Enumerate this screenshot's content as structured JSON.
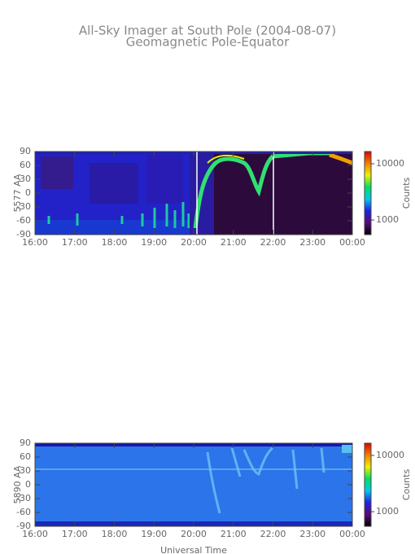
{
  "chart_data": [
    {
      "type": "heatmap",
      "title": "All-Sky Imager at South Pole (2004-08-07)",
      "subtitle": "Geomagnetic Pole-Equator",
      "ylabel": "5577 AA",
      "xlim": [
        16,
        24
      ],
      "xticks": [
        {
          "value": 16,
          "label": "16:00"
        },
        {
          "value": 17,
          "label": "17:00"
        },
        {
          "value": 18,
          "label": "18:00"
        },
        {
          "value": 19,
          "label": "19:00"
        },
        {
          "value": 20,
          "label": "20:00"
        },
        {
          "value": 21,
          "label": "21:00"
        },
        {
          "value": 22,
          "label": "22:00"
        },
        {
          "value": 23,
          "label": "23:00"
        },
        {
          "value": 24,
          "label": "00:00"
        }
      ],
      "ylim": [
        -90,
        90
      ],
      "yticks": [
        -90,
        -60,
        -30,
        0,
        30,
        60,
        90
      ],
      "colorbar": {
        "label": "Counts",
        "log": true,
        "lim": [
          550,
          16500
        ],
        "ticks": [
          1000,
          10000
        ]
      },
      "colormap": [
        "#000000",
        "#5a0a78",
        "#2020e0",
        "#00c8f0",
        "#00e060",
        "#f0f000",
        "#f08000",
        "#e00000"
      ]
    },
    {
      "type": "heatmap",
      "ylabel": "5890 AA",
      "xlabel": "Universal Time",
      "xlim": [
        16,
        24
      ],
      "xticks": [
        {
          "value": 16,
          "label": "16:00"
        },
        {
          "value": 17,
          "label": "17:00"
        },
        {
          "value": 18,
          "label": "18:00"
        },
        {
          "value": 19,
          "label": "19:00"
        },
        {
          "value": 20,
          "label": "20:00"
        },
        {
          "value": 21,
          "label": "21:00"
        },
        {
          "value": 22,
          "label": "22:00"
        },
        {
          "value": 23,
          "label": "23:00"
        },
        {
          "value": 24,
          "label": "00:00"
        }
      ],
      "ylim": [
        -90,
        90
      ],
      "yticks": [
        -90,
        -60,
        -30,
        0,
        30,
        60,
        90
      ],
      "colorbar": {
        "label": "Counts",
        "log": true,
        "lim": [
          550,
          16500
        ],
        "ticks": [
          1000,
          10000
        ]
      },
      "colormap": [
        "#000000",
        "#5a0a78",
        "#2020e0",
        "#00c8f0",
        "#00e060",
        "#f0f000",
        "#f08000",
        "#e00000"
      ]
    }
  ]
}
